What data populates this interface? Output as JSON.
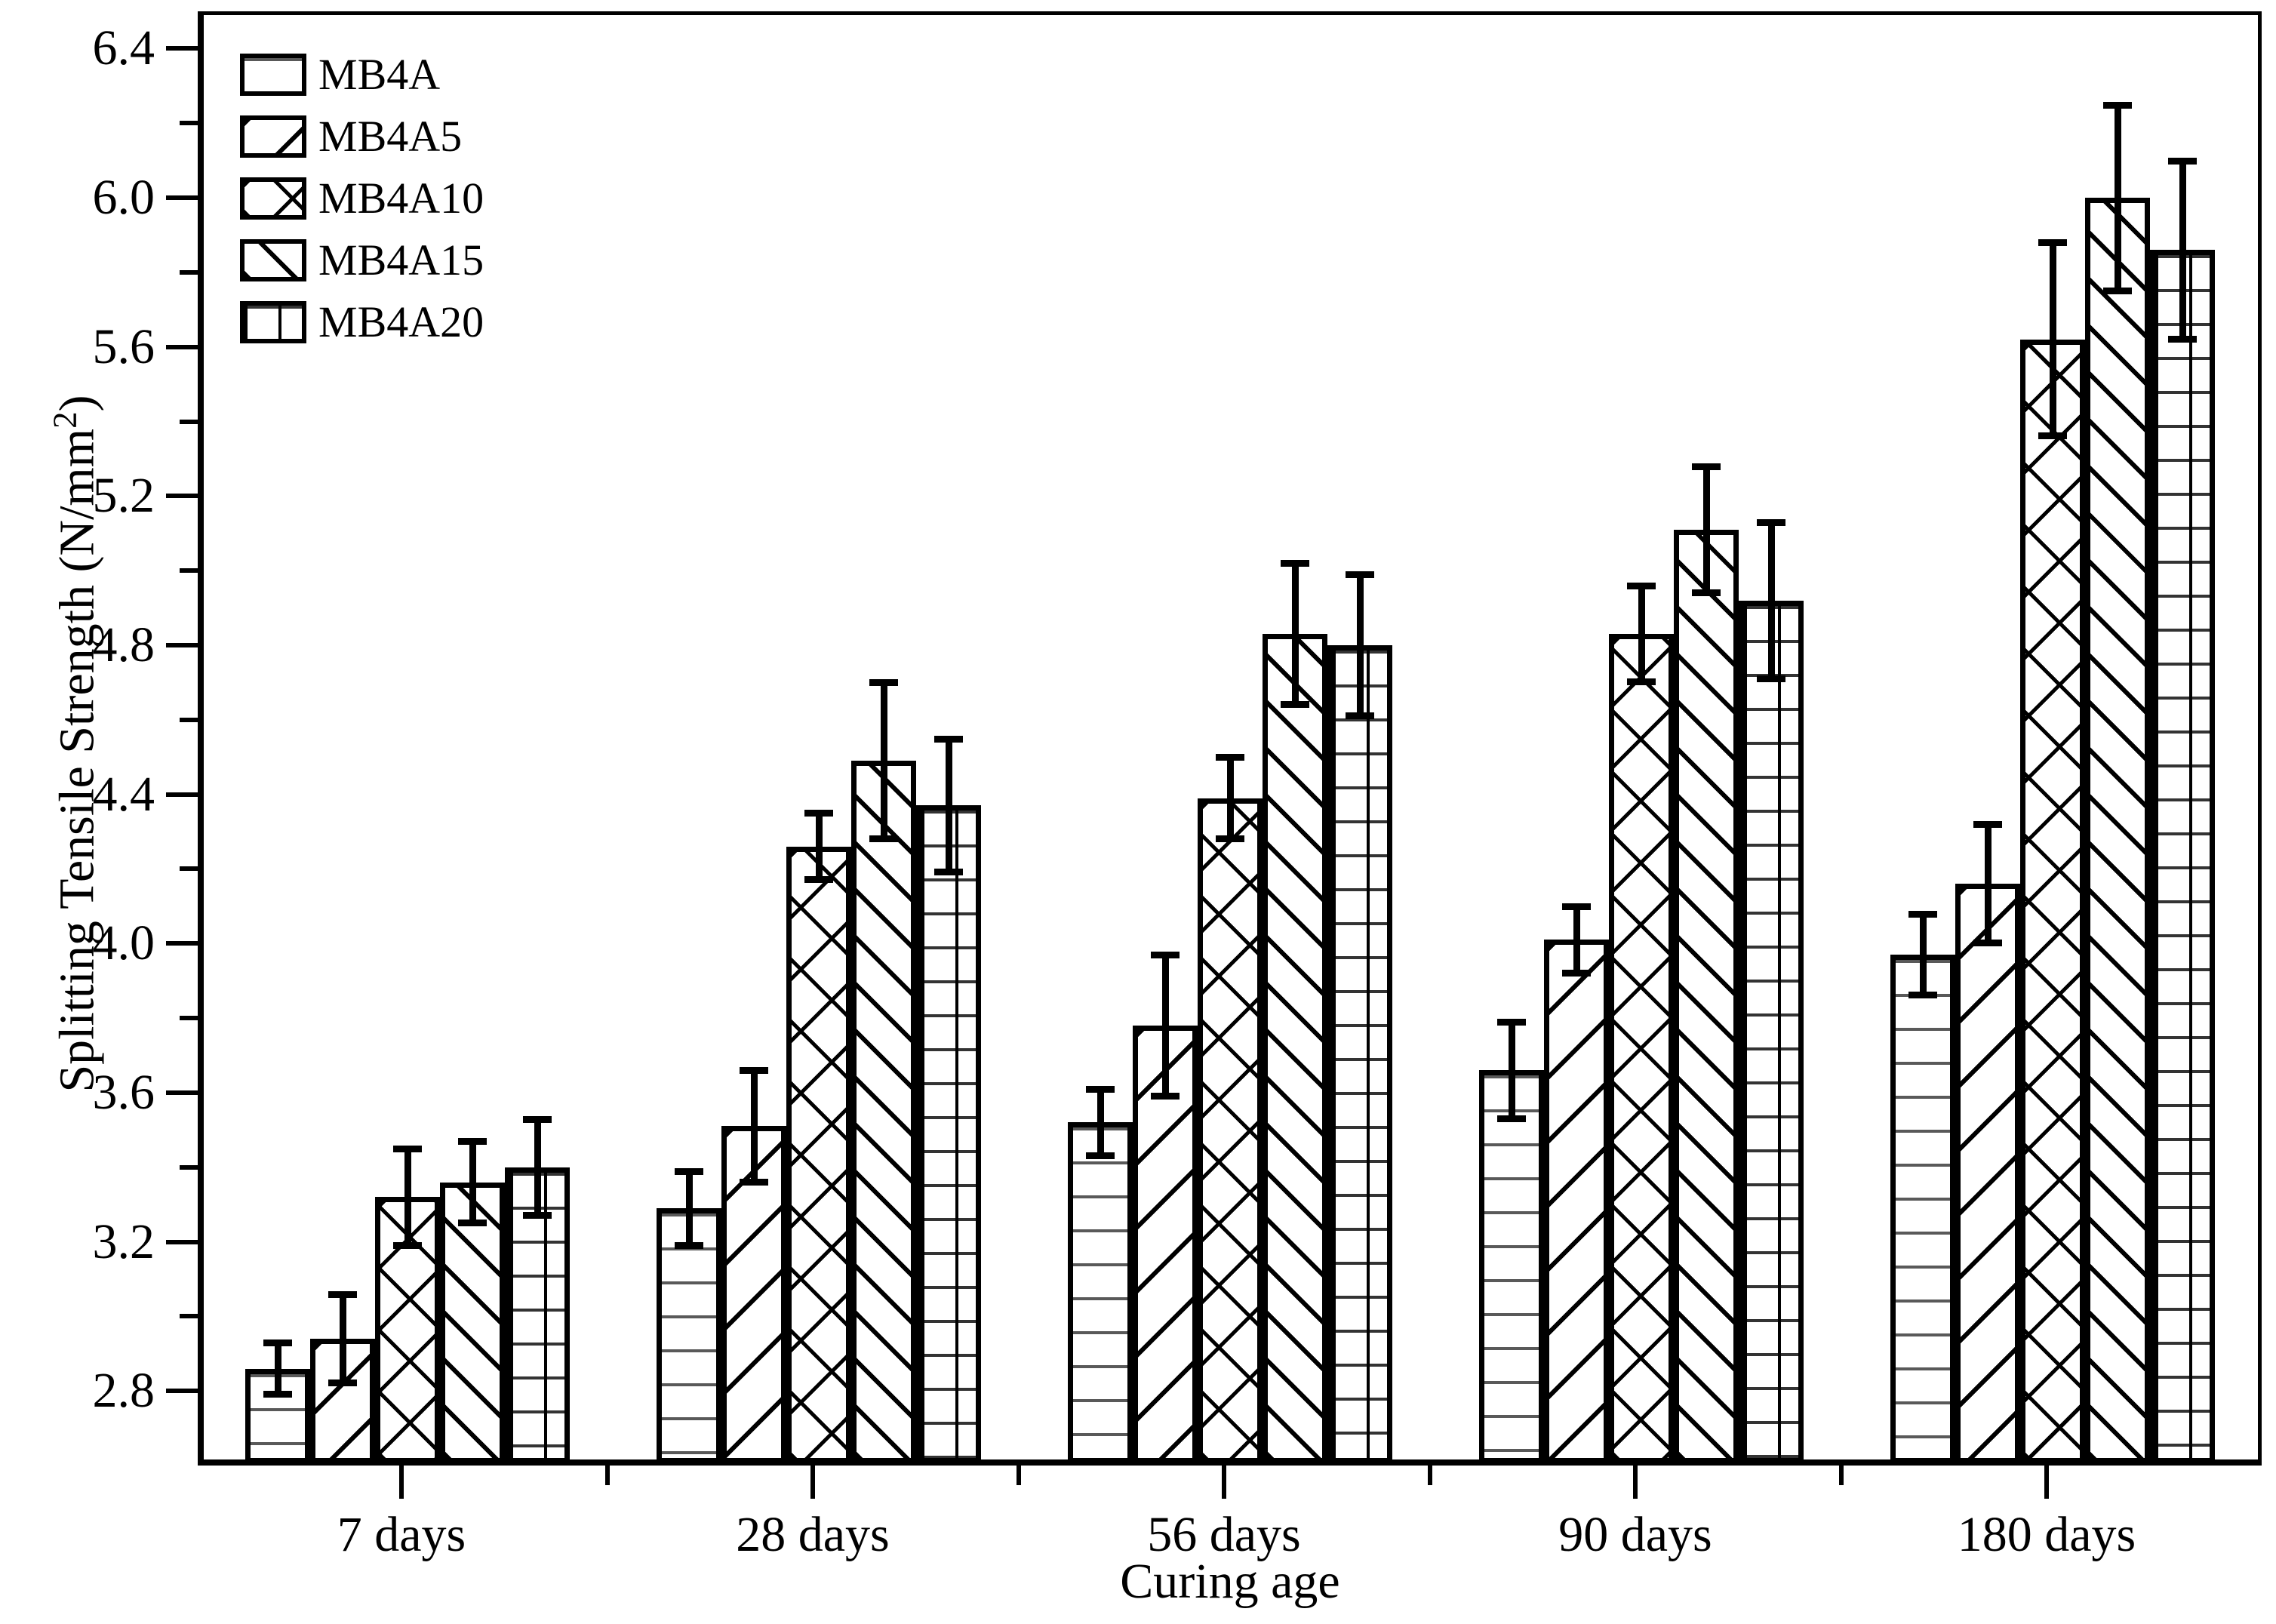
{
  "figure": {
    "xlabel": "Curing age",
    "ylabel_prefix": "Splitting Tensile Strength (N/mm",
    "ylabel_sup": "2",
    "ylabel_suffix": ")"
  },
  "chart_data": {
    "type": "bar",
    "title": "",
    "xlabel": "Curing age",
    "ylabel": "Splitting Tensile Strength (N/mm2)",
    "categories": [
      "7 days",
      "28 days",
      "56 days",
      "90 days",
      "180 days"
    ],
    "series": [
      {
        "name": "MB4A",
        "pattern": "horizontal",
        "values": [
          2.87,
          3.3,
          3.53,
          3.67,
          3.98
        ],
        "errors": [
          0.07,
          0.1,
          0.09,
          0.13,
          0.11
        ]
      },
      {
        "name": "MB4A5",
        "pattern": "diag-up",
        "values": [
          2.95,
          3.52,
          3.79,
          4.02,
          4.17
        ],
        "errors": [
          0.12,
          0.15,
          0.19,
          0.09,
          0.16
        ]
      },
      {
        "name": "MB4A10",
        "pattern": "crosshatch",
        "values": [
          3.33,
          4.27,
          4.4,
          4.84,
          5.63
        ],
        "errors": [
          0.13,
          0.09,
          0.11,
          0.13,
          0.26
        ]
      },
      {
        "name": "MB4A15",
        "pattern": "diag-down",
        "values": [
          3.37,
          4.5,
          4.84,
          5.12,
          6.01
        ],
        "errors": [
          0.11,
          0.21,
          0.19,
          0.17,
          0.25
        ]
      },
      {
        "name": "MB4A20",
        "pattern": "grid",
        "values": [
          3.41,
          4.38,
          4.81,
          4.93,
          5.87
        ],
        "errors": [
          0.13,
          0.18,
          0.19,
          0.21,
          0.24
        ]
      }
    ],
    "error_bars": true,
    "ylim": [
      2.6,
      6.5
    ],
    "yticks_major": [
      2.8,
      3.2,
      3.6,
      4.0,
      4.4,
      4.8,
      5.2,
      5.6,
      6.0,
      6.4
    ],
    "yticks_minor": [
      3.0,
      3.4,
      3.8,
      4.2,
      4.6,
      5.0,
      5.4,
      5.8,
      6.2
    ],
    "ytick_decimals": 1,
    "grid": false,
    "legend_position": "top-left"
  }
}
